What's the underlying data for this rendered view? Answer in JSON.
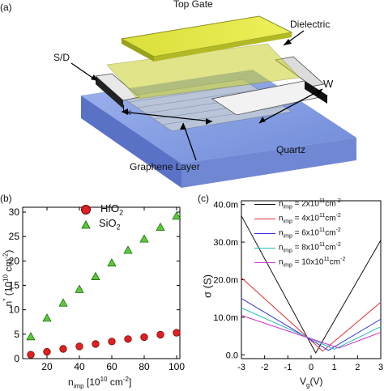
{
  "device": {
    "panel_label": "(a)",
    "top_gate": "Top Gate",
    "dielectric": "Dielectric",
    "sd": "S/D",
    "w": "W",
    "lc_main": "L",
    "lc_sub": "c",
    "quartz": "Quartz",
    "graphene": "Graphene Layer"
  },
  "panel_b": {
    "label": "(b)",
    "ylabel_main": "n",
    "ylabel_sup": "*",
    "ylabel_paren": "(10",
    "ylabel_exp": "10",
    "ylabel_unit": " cm",
    "ylabel_unit_exp": "-2",
    "ylabel_close": ")",
    "xlabel_main": "n",
    "xlabel_sub": "imp",
    "xlabel_rest": " [10",
    "xlabel_exp": "10",
    "xlabel_unit": " cm",
    "xlabel_unit_exp": "-2",
    "xlabel_close": "]",
    "legend": [
      {
        "main": "HfO",
        "sub": "2",
        "color": "#e02020",
        "marker": "circle"
      },
      {
        "main": "SiO",
        "sub": "2",
        "color": "#55cc33",
        "marker": "triangle"
      }
    ]
  },
  "panel_c": {
    "label": "(c)",
    "ylabel": "σ (S)",
    "xlabel_main": "V",
    "xlabel_sub": "g",
    "xlabel_rest": "(V)",
    "legend": [
      {
        "main": "n",
        "sub": "imp",
        "eq": " = 2x10",
        "exp": "11",
        "unit": "cm",
        "uexp": "-2",
        "color": "#111111"
      },
      {
        "main": "n",
        "sub": "imp",
        "eq": " = 4x10",
        "exp": "11",
        "unit": "cm",
        "uexp": "-2",
        "color": "#e03030"
      },
      {
        "main": "n",
        "sub": "imp",
        "eq": " = 6x10",
        "exp": "11",
        "unit": "cm",
        "uexp": "-2",
        "color": "#3333dd"
      },
      {
        "main": "n",
        "sub": "imp",
        "eq": " = 8x10",
        "exp": "11",
        "unit": "cm",
        "uexp": "-2",
        "color": "#22bbbb"
      },
      {
        "main": "n",
        "sub": "imp",
        "eq": " = 10x10",
        "exp": "11",
        "unit": "cm",
        "uexp": "-2",
        "color": "#cc33cc"
      }
    ]
  },
  "chart_data": [
    {
      "type": "scatter",
      "panel": "(b)",
      "xlabel": "nimp [10^10 cm^-2]",
      "ylabel": "n* (10^10 cm^-2)",
      "xlim": [
        5,
        102
      ],
      "ylim": [
        0,
        31
      ],
      "xticks": [
        20,
        40,
        60,
        80,
        100
      ],
      "yticks": [
        0,
        5,
        10,
        15,
        20,
        25,
        30
      ],
      "series": [
        {
          "name": "HfO2",
          "marker": "circle",
          "color": "#e02020",
          "x": [
            10,
            20,
            30,
            40,
            50,
            60,
            70,
            80,
            90,
            100
          ],
          "y": [
            0.8,
            1.4,
            2.0,
            2.5,
            3.0,
            3.5,
            4.0,
            4.4,
            4.9,
            5.3
          ]
        },
        {
          "name": "SiO2",
          "marker": "triangle",
          "color": "#55cc33",
          "x": [
            10,
            20,
            30,
            40,
            50,
            60,
            70,
            80,
            90,
            100
          ],
          "y": [
            4.5,
            8.3,
            11.4,
            14.2,
            16.8,
            19.6,
            22.2,
            24.5,
            26.9,
            29.2
          ]
        }
      ]
    },
    {
      "type": "line",
      "panel": "(c)",
      "xlabel": "Vg(V)",
      "ylabel": "σ (S)",
      "xlim": [
        -3,
        3
      ],
      "ylim": [
        -0.001,
        0.041
      ],
      "xticks": [
        -3,
        -2,
        -1,
        0,
        1,
        2,
        3
      ],
      "yticks": [
        0,
        0.01,
        0.02,
        0.03,
        0.04
      ],
      "ytick_labels": [
        "0.0",
        "10.0m",
        "20.0m",
        "30.0m",
        "40.0m"
      ],
      "series": [
        {
          "name": "nimp = 2x10^11 cm^-2",
          "color": "#111111",
          "x": [
            -3,
            0.2,
            3
          ],
          "y": [
            0.037,
            0.0005,
            0.0305
          ]
        },
        {
          "name": "nimp = 4x10^11 cm^-2",
          "color": "#e03030",
          "x": [
            -3,
            0.5,
            3
          ],
          "y": [
            0.0205,
            0.001,
            0.014
          ]
        },
        {
          "name": "nimp = 6x10^11 cm^-2",
          "color": "#3333dd",
          "x": [
            -3,
            0.75,
            3
          ],
          "y": [
            0.015,
            0.0012,
            0.0095
          ]
        },
        {
          "name": "nimp = 8x10^11 cm^-2",
          "color": "#22bbbb",
          "x": [
            -3,
            1.0,
            3
          ],
          "y": [
            0.0125,
            0.0015,
            0.0075
          ]
        },
        {
          "name": "nimp = 10x10^11 cm^-2",
          "color": "#cc33cc",
          "x": [
            -3,
            1.2,
            3
          ],
          "y": [
            0.0105,
            0.0018,
            0.006
          ]
        }
      ]
    }
  ]
}
